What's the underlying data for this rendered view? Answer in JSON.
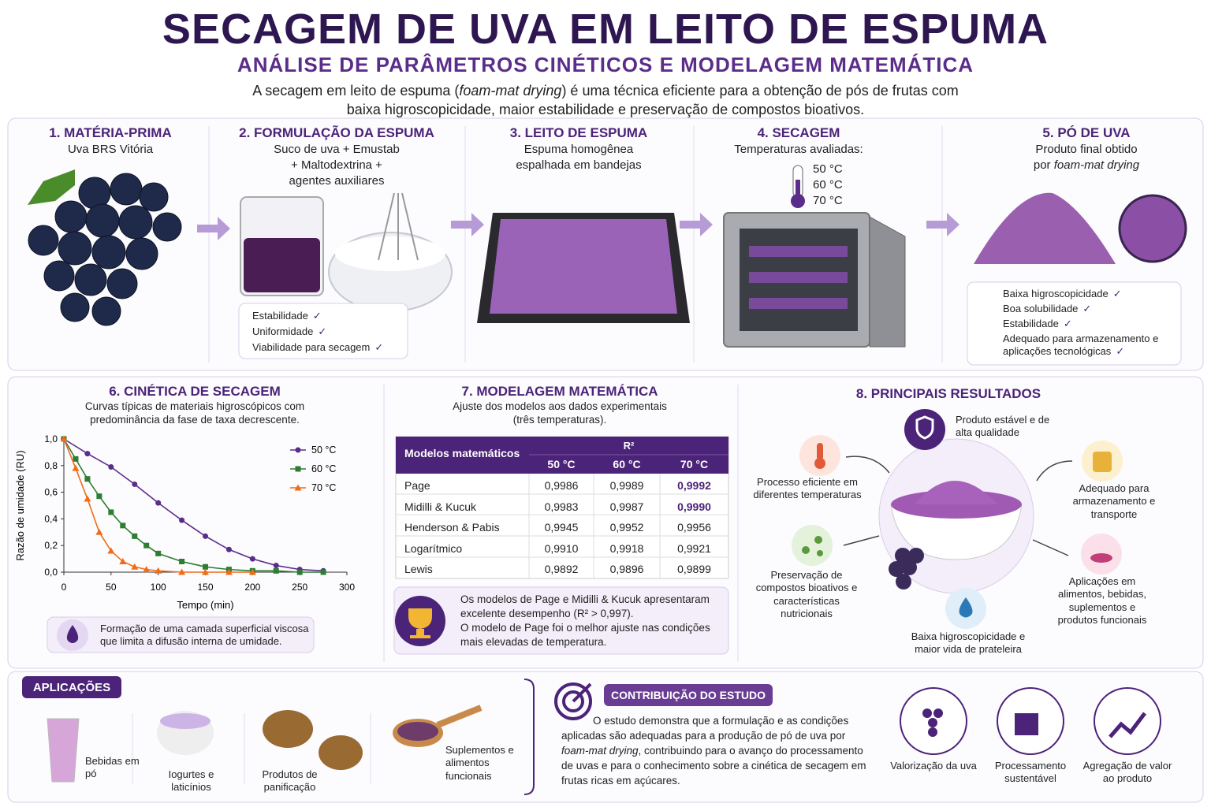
{
  "header": {
    "title": "SECAGEM DE UVA EM LEITO DE ESPUMA",
    "subtitle": "ANÁLISE DE PARÂMETROS CINÉTICOS E MODELAGEM MATEMÁTICA",
    "intro": [
      "A secagem em leito de espuma (",
      "foam-mat drying",
      ") é uma técnica eficiente para a obtenção de pós de frutas com baixa higroscopicidade, maior estabilidade e preservação de compostos bioativos."
    ]
  },
  "steps": [
    {
      "title": "1. MATÉRIA-PRIMA",
      "desc": [
        "Uva BRS Vitória"
      ]
    },
    {
      "title": "2. FORMULAÇÃO DA ESPUMA",
      "desc": [
        "Suco de uva + Emustab",
        "+ Maltodextrina +",
        "agentes auxiliares"
      ],
      "checks": [
        "Estabilidade",
        "Uniformidade",
        "Viabilidade para secagem"
      ]
    },
    {
      "title": "3. LEITO DE ESPUMA",
      "desc": [
        "Espuma homogênea",
        "espalhada em bandejas"
      ]
    },
    {
      "title": "4. SECAGEM",
      "desc": [
        "Temperaturas avaliadas:"
      ],
      "temps": [
        "50 °C",
        "60 °C",
        "70 °C"
      ]
    },
    {
      "title": "5. PÓ DE UVA",
      "desc": [
        "Produto final obtido"
      ],
      "desc_italic": [
        "por ",
        "foam-mat drying"
      ],
      "checks": [
        "Baixa higroscopicidade",
        "Boa solubilidade",
        "Estabilidade",
        "Adequado para armazenamento e aplicações tecnológicas"
      ]
    }
  ],
  "kinetics": {
    "title": "6. CINÉTICA DE SECAGEM",
    "subtitle": "Curvas típicas de materiais higroscópicos com predominância da fase de taxa decrescente.",
    "note": "Formação de uma camada superficial viscosa que limita a difusão interna de umidade."
  },
  "chart_data": {
    "type": "line",
    "x_label": "Tempo (min)",
    "y_label": "Razão de umidade (RU)",
    "xlim": [
      0,
      300
    ],
    "xticks": [
      0,
      50,
      100,
      150,
      200,
      250,
      300
    ],
    "ylim": [
      0,
      1
    ],
    "yticks": [
      {
        "value": 0,
        "label": "0,0"
      },
      {
        "value": 0.2,
        "label": "0,2"
      },
      {
        "value": 0.4,
        "label": "0,4"
      },
      {
        "value": 0.6,
        "label": "0,6"
      },
      {
        "value": 0.8,
        "label": "0,8"
      },
      {
        "value": 1,
        "label": "1,0"
      }
    ],
    "legend": "upper right",
    "series": [
      {
        "name": "50 °C",
        "color": "#5b2d8a",
        "marker": "circle",
        "x": [
          0,
          25,
          50,
          75,
          100,
          125,
          150,
          175,
          200,
          225,
          250,
          275
        ],
        "values": [
          1.0,
          0.89,
          0.79,
          0.66,
          0.52,
          0.39,
          0.27,
          0.17,
          0.1,
          0.05,
          0.02,
          0.01
        ]
      },
      {
        "name": "60 °C",
        "color": "#2e7d32",
        "marker": "square",
        "x": [
          0,
          12.5,
          25,
          37.5,
          50,
          62.5,
          75,
          87.5,
          100,
          125,
          150,
          175,
          200,
          225,
          250,
          275
        ],
        "values": [
          1.0,
          0.85,
          0.7,
          0.57,
          0.45,
          0.35,
          0.27,
          0.2,
          0.14,
          0.08,
          0.04,
          0.02,
          0.01,
          0.01,
          0,
          0
        ]
      },
      {
        "name": "70 °C",
        "color": "#ef6c1a",
        "marker": "triangle",
        "x": [
          0,
          12.5,
          25,
          37.5,
          50,
          62.5,
          75,
          87.5,
          100,
          125,
          150,
          175,
          200
        ],
        "values": [
          1.0,
          0.78,
          0.55,
          0.3,
          0.16,
          0.08,
          0.04,
          0.02,
          0.01,
          0,
          0,
          0,
          0
        ]
      }
    ]
  },
  "modeling": {
    "title": "7. MODELAGEM MATEMÁTICA",
    "subtitle": "Ajuste dos modelos aos dados experimentais (três temperaturas).",
    "table": {
      "header": [
        "Modelos matemáticos",
        "R²"
      ],
      "temps": [
        "50 °C",
        "60 °C",
        "70 °C"
      ],
      "rows": [
        [
          "Page",
          "0,9986",
          "0,9989",
          "0,9992"
        ],
        [
          "Midilli & Kucuk",
          "0,9983",
          "0,9987",
          "0,9990"
        ],
        [
          "Henderson & Pabis",
          "0,9945",
          "0,9952",
          "0,9956"
        ],
        [
          "Logarítmico",
          "0,9910",
          "0,9918",
          "0,9921"
        ],
        [
          "Lewis",
          "0,9892",
          "0,9896",
          "0,9899"
        ]
      ],
      "highlight": [
        [
          0,
          3
        ],
        [
          1,
          3
        ]
      ]
    },
    "conclusion": [
      "Os modelos de Page e Midilli & Kucuk apresentaram excelente desempenho (R² > 0,997).",
      "O modelo de Page foi o melhor ajuste nas condições mais elevadas de temperatura."
    ]
  },
  "results": {
    "title": "8. PRINCIPAIS RESULTADOS",
    "items": [
      "Produto estável e de alta qualidade",
      "Processo eficiente em diferentes temperaturas",
      "Adequado para armazenamento e transporte",
      "Preservação de compostos bioativos e características nutricionais",
      "Aplicações em alimentos, bebidas, suplementos e produtos funcionais",
      "Baixa higroscopicidade e maior vida de prateleira"
    ]
  },
  "applications": {
    "title": "APLICAÇÕES",
    "items": [
      "Bebidas em pó",
      "Iogurtes e laticínios",
      "Produtos de panificação",
      "Suplementos e alimentos funcionais"
    ]
  },
  "contribution": {
    "title": "CONTRIBUIÇÃO DO ESTUDO",
    "text": [
      "O estudo demonstra que a formulação e as condições aplicadas são adequadas para a produção de pó de uva por ",
      "foam-mat drying",
      ", contribuindo para o avanço do processamento de uvas e para o conhecimento sobre a cinética de secagem em frutas ricas em açúcares."
    ]
  },
  "benefits": [
    "Valorização da uva",
    "Processamento sustentável",
    "Agregação de valor ao produto"
  ]
}
